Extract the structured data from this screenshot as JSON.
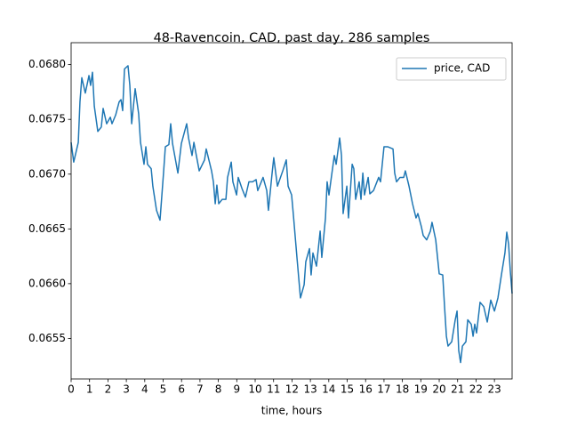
{
  "chart_data": {
    "type": "line",
    "title": "48-Ravencoin, CAD, past day, 286 samples",
    "xlabel": "time, hours",
    "legend": "upper right",
    "xlim": [
      0,
      23.96
    ],
    "ylim": [
      0.06513,
      0.0682
    ],
    "xticks": [
      0,
      1,
      2,
      3,
      4,
      5,
      6,
      7,
      8,
      9,
      10,
      11,
      12,
      13,
      14,
      15,
      16,
      17,
      18,
      19,
      20,
      21,
      22,
      23
    ],
    "yticks": [
      {
        "value": 0.0655,
        "label": "0.0655"
      },
      {
        "value": 0.066,
        "label": "0.0660"
      },
      {
        "value": 0.0665,
        "label": "0.0665"
      },
      {
        "value": 0.067,
        "label": "0.0670"
      },
      {
        "value": 0.0675,
        "label": "0.0675"
      },
      {
        "value": 0.068,
        "label": "0.0680"
      }
    ],
    "x": [
      0.0,
      0.14,
      0.39,
      0.48,
      0.58,
      0.77,
      0.97,
      1.06,
      1.16,
      1.26,
      1.45,
      1.64,
      1.74,
      1.93,
      2.13,
      2.22,
      2.42,
      2.61,
      2.71,
      2.8,
      2.9,
      3.09,
      3.19,
      3.29,
      3.48,
      3.67,
      3.77,
      3.96,
      4.06,
      4.15,
      4.35,
      4.44,
      4.64,
      4.83,
      5.02,
      5.12,
      5.31,
      5.41,
      5.51,
      5.8,
      5.99,
      6.28,
      6.38,
      6.57,
      6.67,
      6.96,
      7.25,
      7.34,
      7.63,
      7.73,
      7.83,
      7.92,
      8.02,
      8.21,
      8.41,
      8.5,
      8.7,
      8.79,
      8.99,
      9.08,
      9.28,
      9.47,
      9.66,
      9.86,
      10.05,
      10.14,
      10.43,
      10.63,
      10.72,
      10.92,
      11.01,
      11.21,
      11.5,
      11.69,
      11.79,
      11.98,
      12.08,
      12.27,
      12.46,
      12.66,
      12.75,
      12.95,
      13.04,
      13.14,
      13.33,
      13.53,
      13.62,
      13.82,
      13.91,
      14.01,
      14.3,
      14.4,
      14.59,
      14.69,
      14.78,
      14.98,
      15.07,
      15.27,
      15.36,
      15.46,
      15.65,
      15.75,
      15.85,
      15.94,
      16.14,
      16.23,
      16.43,
      16.71,
      16.81,
      17.0,
      17.2,
      17.49,
      17.58,
      17.68,
      17.87,
      18.07,
      18.16,
      18.36,
      18.55,
      18.74,
      18.84,
      19.03,
      19.13,
      19.32,
      19.52,
      19.61,
      19.81,
      20.0,
      20.19,
      20.29,
      20.39,
      20.48,
      20.68,
      20.87,
      20.97,
      21.06,
      21.16,
      21.26,
      21.45,
      21.55,
      21.74,
      21.84,
      21.93,
      22.03,
      22.22,
      22.42,
      22.61,
      22.8,
      23.0,
      23.19,
      23.38,
      23.57,
      23.67,
      23.77,
      23.86,
      23.96
    ],
    "series": [
      {
        "name": "price, CAD",
        "color": "#1f77b4",
        "values": [
          0.06729,
          0.06711,
          0.06729,
          0.06766,
          0.06788,
          0.06774,
          0.0679,
          0.06781,
          0.06793,
          0.06762,
          0.06739,
          0.06743,
          0.0676,
          0.06746,
          0.06752,
          0.06746,
          0.06754,
          0.06766,
          0.06768,
          0.06758,
          0.06796,
          0.06799,
          0.06781,
          0.06746,
          0.06778,
          0.06755,
          0.06729,
          0.06709,
          0.06725,
          0.06709,
          0.06705,
          0.06689,
          0.06667,
          0.06658,
          0.06701,
          0.06725,
          0.06727,
          0.06746,
          0.06728,
          0.06701,
          0.06728,
          0.06746,
          0.06733,
          0.06717,
          0.06729,
          0.06703,
          0.06713,
          0.06723,
          0.06703,
          0.06693,
          0.06673,
          0.0669,
          0.06673,
          0.06677,
          0.06677,
          0.06697,
          0.06711,
          0.06693,
          0.06681,
          0.06697,
          0.06687,
          0.06679,
          0.06693,
          0.06693,
          0.06695,
          0.06685,
          0.06697,
          0.06685,
          0.06667,
          0.06701,
          0.06715,
          0.06689,
          0.06703,
          0.06713,
          0.06689,
          0.06681,
          0.06662,
          0.06624,
          0.06587,
          0.06599,
          0.0662,
          0.06632,
          0.06608,
          0.06628,
          0.06616,
          0.06648,
          0.06624,
          0.0666,
          0.06693,
          0.06681,
          0.06717,
          0.06709,
          0.06733,
          0.06717,
          0.06664,
          0.06689,
          0.0666,
          0.06709,
          0.06705,
          0.06677,
          0.06693,
          0.06677,
          0.06701,
          0.06681,
          0.06697,
          0.06682,
          0.06685,
          0.06697,
          0.06693,
          0.06725,
          0.06725,
          0.06723,
          0.06701,
          0.06693,
          0.06697,
          0.06697,
          0.06703,
          0.06689,
          0.06673,
          0.0666,
          0.06664,
          0.06652,
          0.06644,
          0.0664,
          0.06648,
          0.06656,
          0.0664,
          0.06609,
          0.06608,
          0.06579,
          0.06552,
          0.06543,
          0.06547,
          0.06567,
          0.06575,
          0.06539,
          0.06528,
          0.06543,
          0.06547,
          0.06567,
          0.06563,
          0.06552,
          0.06563,
          0.06555,
          0.06583,
          0.06579,
          0.06565,
          0.06585,
          0.06575,
          0.06587,
          0.06608,
          0.06628,
          0.06647,
          0.06636,
          0.06612,
          0.06591
        ]
      }
    ]
  }
}
